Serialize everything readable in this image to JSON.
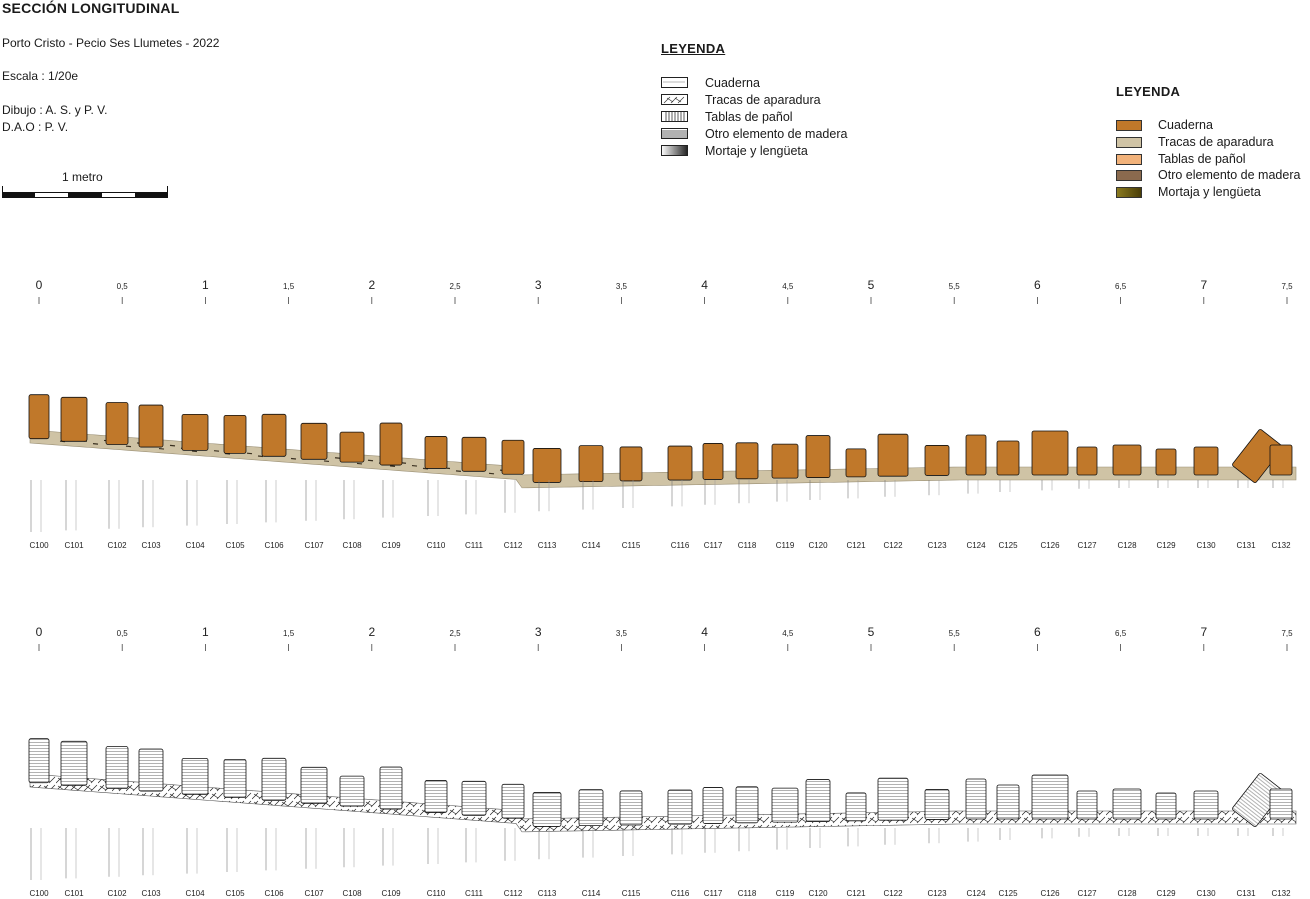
{
  "header": {
    "title": "SECCIÓN LONGITUDINAL",
    "site": "Porto Cristo - Pecio Ses Llumetes - 2022",
    "scale": "Escala : 1/20e",
    "drawing": "Dibujo : A. S. y P. V.",
    "dao": "D.A.O : P. V."
  },
  "scalebar": {
    "label": "1 metro"
  },
  "legend_line": {
    "title": "LEYENDA",
    "items": [
      {
        "label": "Cuaderna",
        "pattern": "outline"
      },
      {
        "label": "Tracas de aparadura",
        "pattern": "hatch"
      },
      {
        "label": "Tablas de pañol",
        "pattern": "vertical"
      },
      {
        "label": "Otro elemento de madera",
        "pattern": "horizontal"
      },
      {
        "label": "Mortaje y lengüeta",
        "pattern": "gradient"
      }
    ]
  },
  "legend_color": {
    "title": "LEYENDA",
    "items": [
      {
        "label": "Cuaderna",
        "color": "#c0782a"
      },
      {
        "label": "Tracas de aparadura",
        "color": "#cfc3a5"
      },
      {
        "label": "Tablas de pañol",
        "color": "#f2b27a"
      },
      {
        "label": "Otro elemento de madera",
        "color": "#8b6a4e"
      },
      {
        "label": "Mortaja y lengüeta",
        "color": "#6b5a12"
      }
    ]
  },
  "axis_ticks": [
    "0",
    "0,5",
    "1",
    "1,5",
    "2",
    "2,5",
    "3",
    "3,5",
    "4",
    "4,5",
    "5",
    "5,5",
    "6",
    "6,5",
    "7",
    "7,5"
  ],
  "frames": [
    "C100",
    "C101",
    "C102",
    "C103",
    "C104",
    "C105",
    "C106",
    "C107",
    "C108",
    "C109",
    "C110",
    "C111",
    "C112",
    "C113",
    "C114",
    "C115",
    "C116",
    "C117",
    "C118",
    "C119",
    "C120",
    "C121",
    "C122",
    "C123",
    "C124",
    "C125",
    "C126",
    "C127",
    "C128",
    "C129",
    "C130",
    "C131",
    "C132"
  ],
  "colors": {
    "frame_fill": "#c0782a",
    "plank_fill": "#cfc3a5",
    "ink": "#1a1a1a"
  }
}
